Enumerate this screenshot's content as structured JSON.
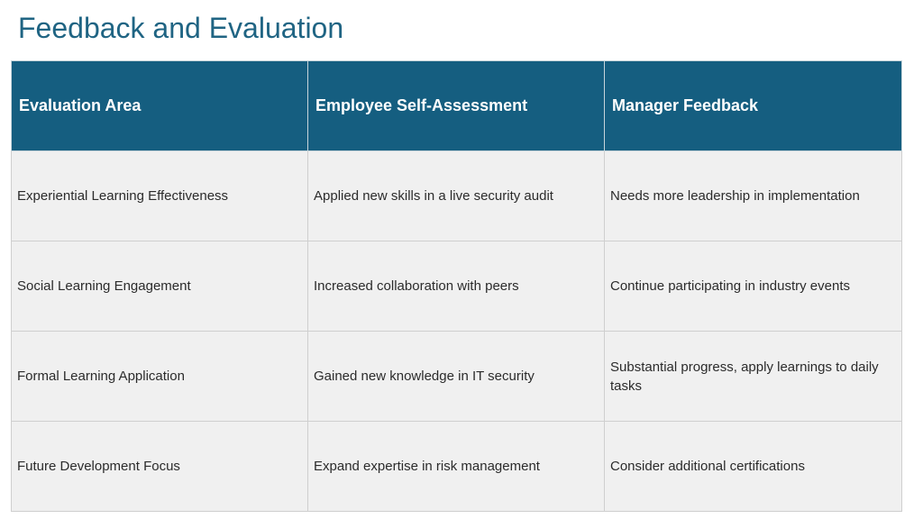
{
  "slide": {
    "title": "Feedback and Evaluation"
  },
  "table": {
    "headers": [
      "Evaluation Area",
      "Employee Self-Assessment",
      "Manager Feedback"
    ],
    "rows": [
      [
        "Experiential Learning Effectiveness",
        "Applied new skills in a live security audit",
        "Needs more leadership in implementation"
      ],
      [
        "Social Learning Engagement",
        "Increased collaboration with peers",
        "Continue participating in industry events"
      ],
      [
        "Formal Learning Application",
        "Gained new knowledge in IT security",
        "Substantial progress, apply learnings to daily tasks"
      ],
      [
        "Future Development Focus",
        "Expand expertise in risk management",
        "Consider additional certifications"
      ]
    ]
  },
  "colors": {
    "title": "#1f6483",
    "header_bg": "#155e80",
    "cell_bg": "#f0f0f0",
    "border": "#cfcfcf"
  }
}
